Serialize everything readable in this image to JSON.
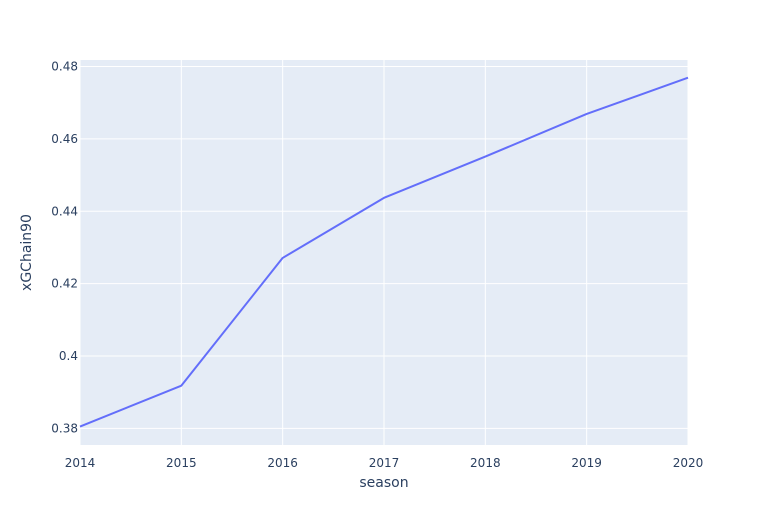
{
  "chart_data": {
    "type": "line",
    "title": "",
    "xlabel": "season",
    "ylabel": "xGChain90",
    "x": [
      2014,
      2015,
      2016,
      2017,
      2018,
      2019,
      2020
    ],
    "series": [
      {
        "values": [
          0.3805,
          0.3918,
          0.4271,
          0.4437,
          0.4551,
          0.4669,
          0.4769
        ],
        "color": "#636efa"
      }
    ],
    "xlim": [
      2014,
      2020
    ],
    "ylim": [
      0.3754,
      0.4818
    ],
    "xticks": [
      "2014",
      "2015",
      "2016",
      "2017",
      "2018",
      "2019",
      "2020"
    ],
    "yticks": [
      "0.38",
      "0.4",
      "0.42",
      "0.44",
      "0.46",
      "0.48"
    ],
    "ytick_values": [
      0.38,
      0.4,
      0.42,
      0.44,
      0.46,
      0.48
    ],
    "grid": true,
    "legend": "none",
    "colors": {
      "plot_bg": "#e5ecf6",
      "grid": "#ffffff",
      "text": "#2a3f5f"
    }
  }
}
